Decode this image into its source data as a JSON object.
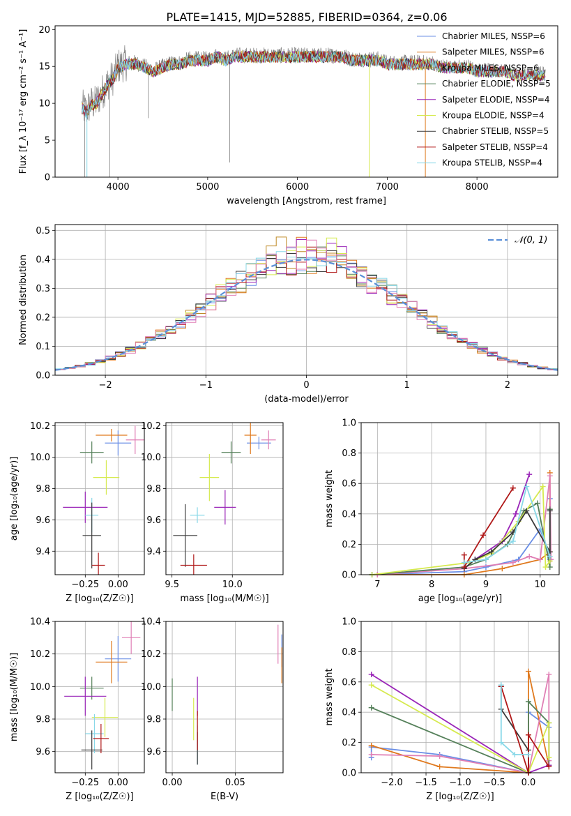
{
  "figure_title": "PLATE=1415, MJD=52885, FIBERID=0364, z=0.06",
  "colors": {
    "Chabrier MILES": "#6b8fe6",
    "Salpeter MILES": "#e07a1f",
    "Kroupa MILES": "#bf8a26",
    "Chabrier ELODIE": "#55805a",
    "Salpeter ELODIE": "#9a25b8",
    "Kroupa ELODIE": "#d6ea4f",
    "Chabrier STELIB": "#3a3a3a",
    "Salpeter STELIB": "#b01818",
    "Kroupa STELIB": "#88d8e8",
    "Pink": "#e07fb5",
    "Data": "#808080",
    "Normal": "#5a8fd8"
  },
  "chart_data": [
    {
      "type": "line",
      "id": "spectrum",
      "xlabel": "wavelength [Angstrom, rest frame]",
      "ylabel": "Flux [f_λ 10⁻¹⁷ erg cm⁻² s⁻¹ A⁻¹]",
      "xlim": [
        3300,
        8900
      ],
      "ylim": [
        0,
        20.5
      ],
      "xticks": [
        4000,
        5000,
        6000,
        7000,
        8000
      ],
      "yticks": [
        0,
        5,
        10,
        15,
        20
      ],
      "grid": false,
      "legend": "top-right",
      "legend_entries": [
        "Chabrier MILES, N_SSP=6",
        "Salpeter MILES, N_SSP=6",
        "Kroupa MILES, N_SSP=6",
        "Chabrier ELODIE, N_SSP=5",
        "Salpeter ELODIE, N_SSP=4",
        "Kroupa ELODIE, N_SSP=4",
        "Chabrier STELIB, N_SSP=5",
        "Salpeter STELIB, N_SSP=4",
        "Kroupa STELIB, N_SSP=4"
      ],
      "data_curve": {
        "x": [
          3600,
          3650,
          3700,
          3750,
          3800,
          3850,
          3900,
          3950,
          4000,
          4100,
          4200,
          4300,
          4400,
          4500,
          4600,
          4700,
          4800,
          4900,
          5000,
          5100,
          5200,
          5300,
          5400,
          5500,
          5600,
          5700,
          5800,
          5900,
          6000,
          6100,
          6200,
          6300,
          6400,
          6500,
          6600,
          6700,
          6800,
          6900,
          7000,
          7100,
          7200,
          7300,
          7400,
          7500,
          7600,
          7700,
          7800,
          7900,
          8000,
          8100,
          8200,
          8300,
          8400,
          8500,
          8600,
          8700,
          8800
        ],
        "y": [
          9.5,
          9,
          10,
          10,
          11,
          12,
          13,
          13.5,
          15,
          15.5,
          15.5,
          15,
          14.5,
          15,
          15.5,
          15.5,
          16,
          16,
          16,
          16.5,
          16,
          16.5,
          16.5,
          16.5,
          16.5,
          16.5,
          16.5,
          16.5,
          16.5,
          16.5,
          16.5,
          16.5,
          16.5,
          16.5,
          16,
          16,
          16,
          16,
          15.5,
          15.5,
          15.5,
          15.5,
          15.5,
          15.5,
          15,
          15,
          15,
          15,
          14.5,
          14.5,
          14.5,
          14.5,
          14,
          14,
          14,
          14,
          14
        ]
      }
    },
    {
      "type": "area",
      "id": "residuals",
      "xlabel": "(data-model)/error",
      "ylabel": "Normed distribution",
      "xlim": [
        -2.5,
        2.5
      ],
      "ylim": [
        0,
        0.52
      ],
      "xticks": [
        -2,
        -1,
        0,
        1,
        2
      ],
      "yticks": [
        0.0,
        0.1,
        0.2,
        0.3,
        0.4,
        0.5
      ],
      "grid": true,
      "legend": "top-right",
      "normal_label": "𝒩(0, 1)",
      "bin_width": 0.1
    },
    {
      "type": "scatter",
      "id": "age-vs-Z",
      "xlabel": "Z [log₁₀(Z/Z☉)]",
      "ylabel": "age [log₁₀(age/yr)]",
      "xlim": [
        -0.48,
        0.2
      ],
      "ylim": [
        9.25,
        10.22
      ],
      "xticks": [
        -0.25,
        0.0
      ],
      "yticks": [
        9.4,
        9.6,
        9.8,
        10.0,
        10.2
      ],
      "grid": true,
      "points": [
        {
          "c": "Chabrier MILES",
          "x": 0.0,
          "xerr": 0.1,
          "y": 10.09,
          "yerr": 0.08
        },
        {
          "c": "Salpeter MILES",
          "x": -0.05,
          "xerr": 0.12,
          "y": 10.14,
          "yerr": 0.04
        },
        {
          "c": "Pink",
          "x": 0.13,
          "xerr": 0.07,
          "y": 10.11,
          "yerr": 0.09
        },
        {
          "c": "Chabrier ELODIE",
          "x": -0.2,
          "xerr": 0.09,
          "y": 10.03,
          "yerr": 0.07
        },
        {
          "c": "Kroupa ELODIE",
          "x": -0.09,
          "xerr": 0.1,
          "y": 9.87,
          "yerr": 0.11
        },
        {
          "c": "Salpeter ELODIE",
          "x": -0.25,
          "xerr": 0.17,
          "y": 9.68,
          "yerr": 0.1
        },
        {
          "c": "Kroupa STELIB",
          "x": -0.2,
          "xerr": 0.05,
          "y": 9.63,
          "yerr": 0.11
        },
        {
          "c": "Chabrier STELIB",
          "x": -0.2,
          "xerr": 0.07,
          "y": 9.5,
          "yerr": 0.21
        },
        {
          "c": "Salpeter STELIB",
          "x": -0.15,
          "xerr": 0.05,
          "y": 9.31,
          "yerr": 0.08
        }
      ]
    },
    {
      "type": "scatter",
      "id": "age-vs-mass",
      "xlabel": "mass [log₁₀(M/M☉)]",
      "ylabel": "",
      "xlim": [
        9.45,
        10.42
      ],
      "ylim": [
        9.25,
        10.22
      ],
      "xticks": [
        9.5,
        10.0
      ],
      "yticks": [
        9.4,
        9.6,
        9.8,
        10.0,
        10.2
      ],
      "grid": true,
      "points": [
        {
          "c": "Chabrier MILES",
          "x": 10.22,
          "xerr": 0.1,
          "y": 10.09,
          "yerr": 0.04
        },
        {
          "c": "Salpeter MILES",
          "x": 10.15,
          "xerr": 0.05,
          "y": 10.14,
          "yerr": 0.12
        },
        {
          "c": "Pink",
          "x": 10.3,
          "xerr": 0.06,
          "y": 10.11,
          "yerr": 0.06
        },
        {
          "c": "Chabrier ELODIE",
          "x": 9.99,
          "xerr": 0.08,
          "y": 10.03,
          "yerr": 0.07
        },
        {
          "c": "Kroupa ELODIE",
          "x": 9.81,
          "xerr": 0.08,
          "y": 9.87,
          "yerr": 0.15
        },
        {
          "c": "Salpeter ELODIE",
          "x": 9.94,
          "xerr": 0.09,
          "y": 9.68,
          "yerr": 0.11
        },
        {
          "c": "Kroupa STELIB",
          "x": 9.71,
          "xerr": 0.06,
          "y": 9.63,
          "yerr": 0.05
        },
        {
          "c": "Chabrier STELIB",
          "x": 9.61,
          "xerr": 0.1,
          "y": 9.5,
          "yerr": 0.2
        },
        {
          "c": "Salpeter STELIB",
          "x": 9.68,
          "xerr": 0.11,
          "y": 9.31,
          "yerr": 0.07
        }
      ]
    },
    {
      "type": "line",
      "id": "massweight-vs-age",
      "xlabel": "age  [log₁₀(age/yr)]",
      "ylabel": "mass weight",
      "xlim": [
        6.7,
        10.35
      ],
      "ylim": [
        0,
        1.0
      ],
      "xticks": [
        7,
        8,
        9,
        10
      ],
      "yticks": [
        0.0,
        0.2,
        0.4,
        0.6,
        0.8,
        1.0
      ],
      "grid": true,
      "series": [
        {
          "c": "Chabrier MILES",
          "x": [
            6.9,
            8.6,
            9.0,
            9.6,
            10.0,
            10.18,
            10.18
          ],
          "y": [
            0.0,
            0.02,
            0.05,
            0.1,
            0.3,
            0.1,
            0.5
          ]
        },
        {
          "c": "Salpeter MILES",
          "x": [
            7.0,
            8.6,
            9.3,
            10.0,
            10.18,
            10.18
          ],
          "y": [
            0.0,
            0.0,
            0.04,
            0.1,
            0.15,
            0.67
          ]
        },
        {
          "c": "Pink",
          "x": [
            7.0,
            8.6,
            9.5,
            9.8,
            10.0,
            10.18,
            10.2
          ],
          "y": [
            0.0,
            0.04,
            0.08,
            0.12,
            0.1,
            0.65,
            0.1
          ]
        },
        {
          "c": "Chabrier ELODIE",
          "x": [
            6.9,
            8.6,
            9.0,
            9.4,
            9.7,
            9.95,
            10.18,
            10.18
          ],
          "y": [
            0.0,
            0.05,
            0.1,
            0.2,
            0.42,
            0.47,
            0.05,
            0.43
          ]
        },
        {
          "c": "Salpeter ELODIE",
          "x": [
            8.6,
            8.8,
            9.3,
            9.55,
            9.8
          ],
          "y": [
            0.04,
            0.1,
            0.22,
            0.4,
            0.66
          ]
        },
        {
          "c": "Kroupa ELODIE",
          "x": [
            6.9,
            8.7,
            9.1,
            9.6,
            10.05,
            10.1,
            10.18
          ],
          "y": [
            0.0,
            0.08,
            0.14,
            0.35,
            0.58,
            0.05,
            0.09
          ]
        },
        {
          "c": "Chabrier STELIB",
          "x": [
            8.6,
            8.8,
            9.1,
            9.5,
            9.75,
            10.18,
            10.18
          ],
          "y": [
            0.04,
            0.1,
            0.15,
            0.28,
            0.42,
            0.15,
            0.42
          ]
        },
        {
          "c": "Salpeter STELIB",
          "x": [
            8.6,
            8.6,
            8.95,
            9.5
          ],
          "y": [
            0.13,
            0.05,
            0.26,
            0.57
          ]
        },
        {
          "c": "Kroupa STELIB",
          "x": [
            8.6,
            9.0,
            9.5,
            9.75,
            10.18
          ],
          "y": [
            0.08,
            0.1,
            0.22,
            0.58,
            0.12
          ]
        }
      ]
    },
    {
      "type": "scatter",
      "id": "mass-vs-Z",
      "xlabel": "Z [log₁₀(Z/Z☉)]",
      "ylabel": "mass [log₁₀(M/M☉)]",
      "xlim": [
        -0.48,
        0.2
      ],
      "ylim": [
        9.47,
        10.4
      ],
      "xticks": [
        -0.25,
        0.0
      ],
      "yticks": [
        9.6,
        9.8,
        10.0,
        10.2,
        10.4
      ],
      "grid": true,
      "points": [
        {
          "c": "Chabrier MILES",
          "x": 0.0,
          "xerr": 0.1,
          "y": 10.17,
          "yerr": 0.14
        },
        {
          "c": "Salpeter MILES",
          "x": -0.05,
          "xerr": 0.12,
          "y": 10.15,
          "yerr": 0.13
        },
        {
          "c": "Pink",
          "x": 0.1,
          "xerr": 0.07,
          "y": 10.3,
          "yerr": 0.1
        },
        {
          "c": "Chabrier ELODIE",
          "x": -0.2,
          "xerr": 0.09,
          "y": 9.99,
          "yerr": 0.07
        },
        {
          "c": "Kroupa ELODIE",
          "x": -0.1,
          "xerr": 0.1,
          "y": 9.81,
          "yerr": 0.12
        },
        {
          "c": "Salpeter ELODIE",
          "x": -0.25,
          "xerr": 0.16,
          "y": 9.94,
          "yerr": 0.12
        },
        {
          "c": "Kroupa STELIB",
          "x": -0.18,
          "xerr": 0.07,
          "y": 9.71,
          "yerr": 0.12
        },
        {
          "c": "Chabrier STELIB",
          "x": -0.2,
          "xerr": 0.08,
          "y": 9.61,
          "yerr": 0.12
        },
        {
          "c": "Salpeter STELIB",
          "x": -0.13,
          "xerr": 0.06,
          "y": 9.68,
          "yerr": 0.09
        }
      ]
    },
    {
      "type": "scatter",
      "id": "mass-vs-ebv",
      "xlabel": "E(B-V)",
      "ylabel": "",
      "xlim": [
        -0.005,
        0.088
      ],
      "ylim": [
        9.47,
        10.4
      ],
      "xticks": [
        0.0,
        0.05
      ],
      "yticks": [
        9.6,
        9.8,
        10.0,
        10.2,
        10.4
      ],
      "grid": true,
      "points": [
        {
          "c": "Chabrier MILES",
          "x": 0.087,
          "xerr": 0,
          "y": 10.22,
          "yerr": 0.1
        },
        {
          "c": "Salpeter MILES",
          "x": 0.087,
          "xerr": 0,
          "y": 10.13,
          "yerr": 0.11
        },
        {
          "c": "Pink",
          "x": 0.084,
          "xerr": 0,
          "y": 10.26,
          "yerr": 0.12
        },
        {
          "c": "Chabrier ELODIE",
          "x": 0.0,
          "xerr": 0,
          "y": 9.95,
          "yerr": 0.1
        },
        {
          "c": "Kroupa ELODIE",
          "x": 0.017,
          "xerr": 0,
          "y": 9.8,
          "yerr": 0.13
        },
        {
          "c": "Salpeter ELODIE",
          "x": 0.02,
          "xerr": 0,
          "y": 9.94,
          "yerr": 0.12
        },
        {
          "c": "Kroupa STELIB",
          "x": 0.02,
          "xerr": 0,
          "y": 9.64,
          "yerr": 0.12
        },
        {
          "c": "Chabrier STELIB",
          "x": 0.02,
          "xerr": 0,
          "y": 9.62,
          "yerr": 0.1
        },
        {
          "c": "Salpeter STELIB",
          "x": 0.02,
          "xerr": 0,
          "y": 9.73,
          "yerr": 0.12
        }
      ]
    },
    {
      "type": "line",
      "id": "massweight-vs-Z",
      "xlabel": "Z [log₁₀(Z/Z☉)]",
      "ylabel": "mass weight",
      "xlim": [
        -2.45,
        0.45
      ],
      "ylim": [
        0,
        1.0
      ],
      "xticks": [
        -2.0,
        -1.5,
        -1.0,
        -0.5,
        0.0
      ],
      "yticks": [
        0.0,
        0.2,
        0.4,
        0.6,
        0.8,
        1.0
      ],
      "grid": true,
      "series": [
        {
          "c": "Chabrier MILES",
          "x": [
            -2.3,
            -2.3,
            -1.3,
            0.0,
            0.0,
            0.3
          ],
          "y": [
            0.1,
            0.17,
            0.12,
            0.0,
            0.4,
            0.3
          ]
        },
        {
          "c": "Salpeter MILES",
          "x": [
            -2.3,
            -1.3,
            0.0,
            0.0,
            0.3
          ],
          "y": [
            0.18,
            0.04,
            0.0,
            0.67,
            0.05
          ]
        },
        {
          "c": "Pink",
          "x": [
            -2.3,
            -1.3,
            0.0,
            0.3,
            0.3
          ],
          "y": [
            0.12,
            0.11,
            0.0,
            0.65,
            0.08
          ]
        },
        {
          "c": "Chabrier ELODIE",
          "x": [
            -2.3,
            0.0,
            0.0,
            0.3,
            0.3
          ],
          "y": [
            0.43,
            0.0,
            0.47,
            0.33,
            0.05
          ]
        },
        {
          "c": "Salpeter ELODIE",
          "x": [
            -2.3,
            0.0,
            0.3
          ],
          "y": [
            0.65,
            0.0,
            0.05
          ]
        },
        {
          "c": "Kroupa ELODIE",
          "x": [
            -2.3,
            0.0,
            0.3,
            0.3
          ],
          "y": [
            0.58,
            0.0,
            0.33,
            0.1
          ]
        },
        {
          "c": "Chabrier STELIB",
          "x": [
            -0.4,
            -0.4,
            0.0,
            0.0
          ],
          "y": [
            0.57,
            0.42,
            0.15,
            0.0
          ]
        },
        {
          "c": "Salpeter STELIB",
          "x": [
            -0.4,
            0.0,
            0.0,
            0.3
          ],
          "y": [
            0.57,
            0.0,
            0.25,
            0.04
          ]
        },
        {
          "c": "Kroupa STELIB",
          "x": [
            -0.4,
            -0.4,
            -0.2,
            0.0
          ],
          "y": [
            0.58,
            0.2,
            0.12,
            0.12
          ]
        }
      ]
    }
  ]
}
